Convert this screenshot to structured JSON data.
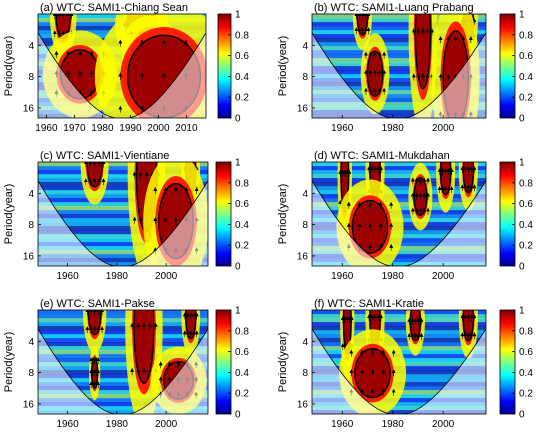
{
  "chart_data": [
    {
      "type": "heatmap",
      "title": "(a) WTC: SAMI1-Chiang Sean",
      "ylabel": "Period(year)",
      "xlim": [
        1957,
        2017
      ],
      "ylim": [
        2,
        20
      ],
      "x_ticks": [
        "1960",
        "1970",
        "1980",
        "1990",
        "2000",
        "2010"
      ],
      "y_ticks": [
        "4",
        "8",
        "16"
      ],
      "coi_center": 1987,
      "colorbar": {
        "ticks": [
          "0",
          "0.2",
          "0.4",
          "0.6",
          "0.8",
          "1"
        ],
        "range": [
          0,
          1
        ]
      },
      "significant_regions": [
        {
          "x": 1966,
          "period": 2.1,
          "w": 2.5,
          "h": 0.12
        },
        {
          "x": 1994,
          "period": 2.6,
          "w": 5,
          "h": 0.1
        },
        {
          "x": 1997,
          "period": 4.4,
          "w": 5.5,
          "h": 0.1
        },
        {
          "x": 1972,
          "period": 7.6,
          "w": 7,
          "h": 0.13
        },
        {
          "x": 2002,
          "period": 8.0,
          "w": 13,
          "h": 0.22
        }
      ]
    },
    {
      "type": "heatmap",
      "title": "(b) WTC: SAMI1-Luang Prabang",
      "ylabel": "Period(year)",
      "xlim": [
        1948,
        2017
      ],
      "ylim": [
        2,
        20
      ],
      "x_ticks": [
        "1960",
        "1980",
        "2000"
      ],
      "y_ticks": [
        "4",
        "8",
        "16"
      ],
      "coi_center": 1982,
      "colorbar": {
        "ticks": [
          "0",
          "0.2",
          "0.4",
          "0.6",
          "0.8",
          "1"
        ],
        "range": [
          0,
          1
        ]
      },
      "significant_regions": [
        {
          "x": 1968,
          "period": 2.1,
          "w": 2,
          "h": 0.1
        },
        {
          "x": 1992,
          "period": 3.0,
          "w": 3,
          "h": 0.3
        },
        {
          "x": 2010,
          "period": 2.4,
          "w": 2,
          "h": 0.1
        },
        {
          "x": 1973,
          "period": 7.5,
          "w": 3,
          "h": 0.12
        },
        {
          "x": 2005,
          "period": 8.2,
          "w": 5,
          "h": 0.25
        }
      ]
    },
    {
      "type": "heatmap",
      "title": "(c) WTC: SAMI1-Vientiane",
      "ylabel": "Period(year)",
      "xlim": [
        1948,
        2017
      ],
      "ylim": [
        2,
        20
      ],
      "x_ticks": [
        "1960",
        "1980",
        "2000"
      ],
      "y_ticks": [
        "4",
        "8",
        "16"
      ],
      "coi_center": 1982,
      "colorbar": {
        "ticks": [
          "0",
          "0.2",
          "0.4",
          "0.6",
          "0.8",
          "1"
        ],
        "range": [
          0,
          1
        ]
      },
      "significant_regions": [
        {
          "x": 1971,
          "period": 2.1,
          "w": 3,
          "h": 0.12
        },
        {
          "x": 1992,
          "period": 2.7,
          "w": 4,
          "h": 0.3
        },
        {
          "x": 2010,
          "period": 2.4,
          "w": 2,
          "h": 0.12
        },
        {
          "x": 2004,
          "period": 7.4,
          "w": 7,
          "h": 0.2
        }
      ]
    },
    {
      "type": "heatmap",
      "title": "(d) WTC: SAMI1-Mukdahan",
      "ylabel": "Period(year)",
      "xlim": [
        1948,
        2017
      ],
      "ylim": [
        2,
        20
      ],
      "x_ticks": [
        "1960",
        "1980",
        "2000"
      ],
      "y_ticks": [
        "4",
        "8",
        "16"
      ],
      "coi_center": 1982,
      "colorbar": {
        "ticks": [
          "0",
          "0.2",
          "0.4",
          "0.6",
          "0.8",
          "1"
        ],
        "range": [
          0,
          1
        ]
      },
      "significant_regions": [
        {
          "x": 1961,
          "period": 2.6,
          "w": 1.5,
          "h": 0.2
        },
        {
          "x": 1973,
          "period": 2.4,
          "w": 2,
          "h": 0.15
        },
        {
          "x": 2001,
          "period": 2.5,
          "w": 2,
          "h": 0.12
        },
        {
          "x": 1991,
          "period": 4.3,
          "w": 2.5,
          "h": 0.1
        },
        {
          "x": 2010,
          "period": 2.4,
          "w": 2,
          "h": 0.12
        },
        {
          "x": 1971,
          "period": 8.4,
          "w": 7,
          "h": 0.14
        }
      ]
    },
    {
      "type": "heatmap",
      "title": "(e) WTC: SAMI1-Pakse",
      "ylabel": "Period(year)",
      "xlim": [
        1948,
        2017
      ],
      "ylim": [
        2,
        20
      ],
      "x_ticks": [
        "1960",
        "1980",
        "2000"
      ],
      "y_ticks": [
        "4",
        "8",
        "16"
      ],
      "coi_center": 1982,
      "colorbar": {
        "ticks": [
          "0",
          "0.2",
          "0.4",
          "0.6",
          "0.8",
          "1"
        ],
        "range": [
          0,
          1
        ]
      },
      "significant_regions": [
        {
          "x": 1971,
          "period": 2.1,
          "w": 2.5,
          "h": 0.12
        },
        {
          "x": 1991,
          "period": 2.9,
          "w": 4,
          "h": 0.3
        },
        {
          "x": 2010,
          "period": 2.3,
          "w": 2,
          "h": 0.12
        },
        {
          "x": 1971,
          "period": 8.1,
          "w": 1.2,
          "h": 0.08
        },
        {
          "x": 2005,
          "period": 9.5,
          "w": 6,
          "h": 0.1
        }
      ]
    },
    {
      "type": "heatmap",
      "title": "(f) WTC: SAMI1-Kratie",
      "ylabel": "Period(year)",
      "xlim": [
        1948,
        2017
      ],
      "ylim": [
        2,
        20
      ],
      "x_ticks": [
        "1960",
        "1980",
        "2000"
      ],
      "y_ticks": [
        "4",
        "8",
        "16"
      ],
      "coi_center": 1982,
      "colorbar": {
        "ticks": [
          "0",
          "0.2",
          "0.4",
          "0.6",
          "0.8",
          "1"
        ],
        "range": [
          0,
          1
        ]
      },
      "significant_regions": [
        {
          "x": 1962,
          "period": 2.5,
          "w": 1.5,
          "h": 0.18
        },
        {
          "x": 1973,
          "period": 2.4,
          "w": 2,
          "h": 0.15
        },
        {
          "x": 1989,
          "period": 2.6,
          "w": 2,
          "h": 0.1
        },
        {
          "x": 2010,
          "period": 2.4,
          "w": 2,
          "h": 0.12
        },
        {
          "x": 1972,
          "period": 8.1,
          "w": 7,
          "h": 0.13
        }
      ]
    }
  ]
}
